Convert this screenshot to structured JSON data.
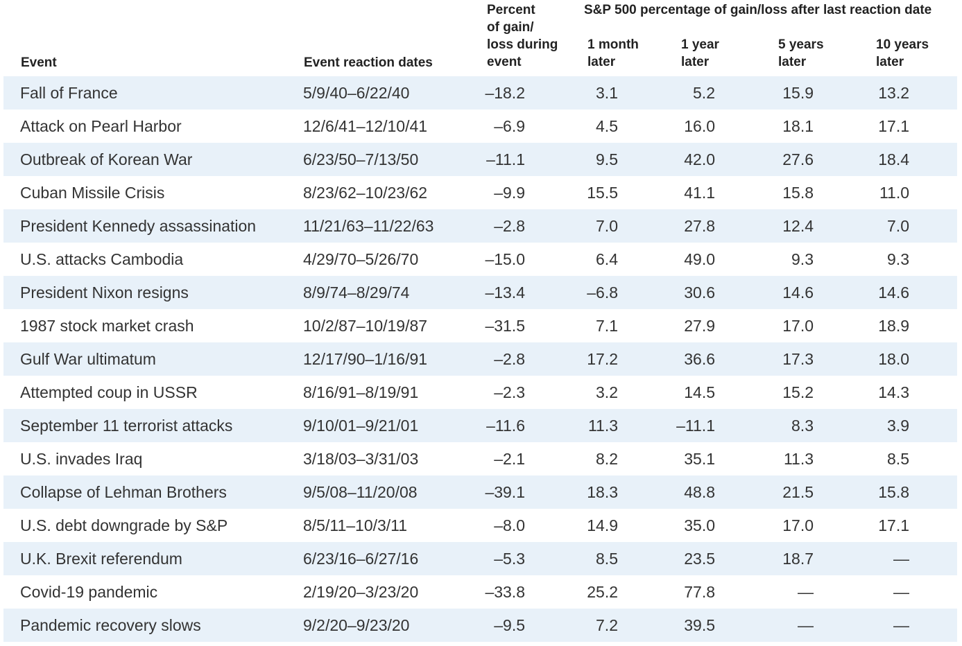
{
  "headers": {
    "event": "Event",
    "dates": "Event reaction dates",
    "percent_line1": "Percent",
    "percent_line2": "of gain/",
    "percent_line3": "loss during",
    "percent_line4": "event",
    "group": "S&P 500 percentage of gain/loss after last reaction date",
    "m1_line1": "1 month",
    "m1_line2": "later",
    "y1_line1": "1 year",
    "y1_line2": "later",
    "y5_line1": "5 years",
    "y5_line2": "later",
    "y10_line1": "10 years",
    "y10_line2": "later"
  },
  "rows": [
    {
      "event": "Fall of France",
      "dates": "5/9/40–6/22/40",
      "during": "–18.2",
      "m1": "3.1",
      "y1": "5.2",
      "y5": "15.9",
      "y10": "13.2"
    },
    {
      "event": "Attack on Pearl Harbor",
      "dates": "12/6/41–12/10/41",
      "during": "–6.9",
      "m1": "4.5",
      "y1": "16.0",
      "y5": "18.1",
      "y10": "17.1"
    },
    {
      "event": "Outbreak of Korean War",
      "dates": "6/23/50–7/13/50",
      "during": "–11.1",
      "m1": "9.5",
      "y1": "42.0",
      "y5": "27.6",
      "y10": "18.4"
    },
    {
      "event": "Cuban Missile Crisis",
      "dates": "8/23/62–10/23/62",
      "during": "–9.9",
      "m1": "15.5",
      "y1": "41.1",
      "y5": "15.8",
      "y10": "11.0"
    },
    {
      "event": "President Kennedy assassination",
      "dates": "11/21/63–11/22/63",
      "during": "–2.8",
      "m1": "7.0",
      "y1": "27.8",
      "y5": "12.4",
      "y10": "7.0"
    },
    {
      "event": "U.S. attacks Cambodia",
      "dates": "4/29/70–5/26/70",
      "during": "–15.0",
      "m1": "6.4",
      "y1": "49.0",
      "y5": "9.3",
      "y10": "9.3"
    },
    {
      "event": "President Nixon resigns",
      "dates": "8/9/74–8/29/74",
      "during": "–13.4",
      "m1": "–6.8",
      "y1": "30.6",
      "y5": "14.6",
      "y10": "14.6"
    },
    {
      "event": "1987 stock market crash",
      "dates": "10/2/87–10/19/87",
      "during": "–31.5",
      "m1": "7.1",
      "y1": "27.9",
      "y5": "17.0",
      "y10": "18.9"
    },
    {
      "event": "Gulf War ultimatum",
      "dates": "12/17/90–1/16/91",
      "during": "–2.8",
      "m1": "17.2",
      "y1": "36.6",
      "y5": "17.3",
      "y10": "18.0"
    },
    {
      "event": "Attempted coup in USSR",
      "dates": "8/16/91–8/19/91",
      "during": "–2.3",
      "m1": "3.2",
      "y1": "14.5",
      "y5": "15.2",
      "y10": "14.3"
    },
    {
      "event": "September 11 terrorist attacks",
      "dates": "9/10/01–9/21/01",
      "during": "–11.6",
      "m1": "11.3",
      "y1": "–11.1",
      "y5": "8.3",
      "y10": "3.9"
    },
    {
      "event": "U.S. invades Iraq",
      "dates": "3/18/03–3/31/03",
      "during": "–2.1",
      "m1": "8.2",
      "y1": "35.1",
      "y5": "11.3",
      "y10": "8.5"
    },
    {
      "event": "Collapse of Lehman Brothers",
      "dates": "9/5/08–11/20/08",
      "during": "–39.1",
      "m1": "18.3",
      "y1": "48.8",
      "y5": "21.5",
      "y10": "15.8"
    },
    {
      "event": "U.S. debt downgrade by S&P",
      "dates": "8/5/11–10/3/11",
      "during": "–8.0",
      "m1": "14.9",
      "y1": "35.0",
      "y5": "17.0",
      "y10": "17.1"
    },
    {
      "event": "U.K. Brexit referendum",
      "dates": "6/23/16–6/27/16",
      "during": "–5.3",
      "m1": "8.5",
      "y1": "23.5",
      "y5": "18.7",
      "y10": "—"
    },
    {
      "event": "Covid-19 pandemic",
      "dates": "2/19/20–3/23/20",
      "during": "–33.8",
      "m1": "25.2",
      "y1": "77.8",
      "y5": "—",
      "y10": "—"
    },
    {
      "event": "Pandemic recovery slows",
      "dates": "9/2/20–9/23/20",
      "during": "–9.5",
      "m1": "7.2",
      "y1": "39.5",
      "y5": "—",
      "y10": "—"
    }
  ],
  "colors": {
    "row_shade": "#e8f1f9",
    "text": "#333333",
    "header_text": "#222222"
  }
}
